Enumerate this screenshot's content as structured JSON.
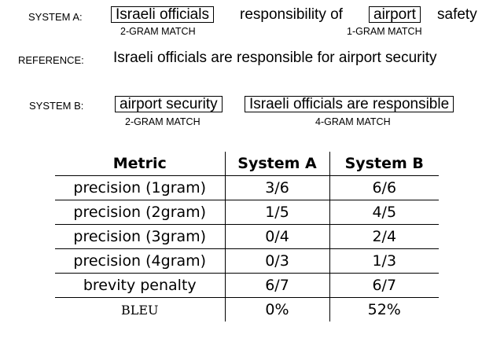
{
  "system_a": {
    "label": "SYSTEM A:",
    "seg1": "Israeli officials",
    "seg2": "responsibility of",
    "seg3": "airport",
    "seg4": "safety",
    "match1": "2-GRAM MATCH",
    "match2": "1-GRAM MATCH"
  },
  "reference": {
    "label": "REFERENCE:",
    "sentence": "Israeli officials are responsible for airport security"
  },
  "system_b": {
    "label": "SYSTEM B:",
    "seg1": "airport security",
    "seg2": "Israeli officials are responsible",
    "match1": "2-GRAM MATCH",
    "match2": "4-GRAM MATCH"
  },
  "table": {
    "headers": [
      "Metric",
      "System A",
      "System B"
    ],
    "rows": [
      [
        "precision (1gram)",
        "3/6",
        "6/6"
      ],
      [
        "precision (2gram)",
        "1/5",
        "4/5"
      ],
      [
        "precision (3gram)",
        "0/4",
        "2/4"
      ],
      [
        "precision (4gram)",
        "0/3",
        "1/3"
      ],
      [
        "brevity penalty",
        "6/7",
        "6/7"
      ],
      [
        "BLEU",
        "0%",
        "52%"
      ]
    ]
  }
}
